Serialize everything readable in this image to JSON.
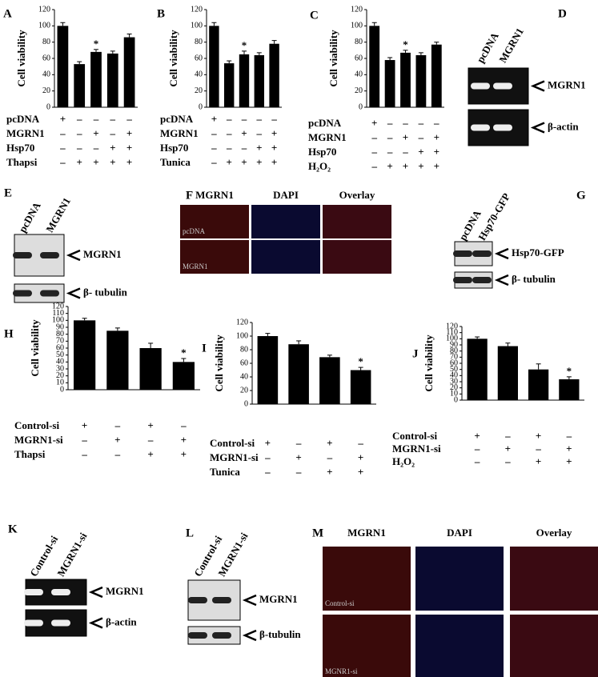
{
  "chart_data": [
    {
      "type": "bar",
      "panel": "A",
      "ylabel": "Cell viability",
      "ylim": [
        0,
        120
      ],
      "yticks": [
        0,
        20,
        40,
        60,
        80,
        100,
        120
      ],
      "color": "#000000",
      "categories": [
        null,
        null,
        null,
        null,
        null
      ],
      "values": [
        100,
        53,
        68,
        66,
        86
      ],
      "errors": [
        4,
        3,
        3,
        3,
        4
      ],
      "significance": [
        null,
        null,
        "*",
        null,
        null
      ],
      "conditions": [
        {
          "label": "pcDNA",
          "signs": [
            "+",
            "–",
            "–",
            "–",
            "–"
          ]
        },
        {
          "label": "MGRN1",
          "signs": [
            "–",
            "–",
            "+",
            "–",
            "+"
          ]
        },
        {
          "label": "Hsp70",
          "signs": [
            "–",
            "–",
            "–",
            "+",
            "+"
          ]
        },
        {
          "label": "Thapsi",
          "signs": [
            "–",
            "+",
            "+",
            "+",
            "+"
          ]
        }
      ]
    },
    {
      "type": "bar",
      "panel": "B",
      "ylabel": "Cell viability",
      "ylim": [
        0,
        120
      ],
      "yticks": [
        0,
        20,
        40,
        60,
        80,
        100,
        120
      ],
      "color": "#000000",
      "categories": [
        null,
        null,
        null,
        null,
        null
      ],
      "values": [
        100,
        54,
        65,
        64,
        78
      ],
      "errors": [
        4,
        3,
        4,
        3,
        4
      ],
      "significance": [
        null,
        null,
        "*",
        null,
        null
      ],
      "conditions": [
        {
          "label": "pcDNA",
          "signs": [
            "+",
            "–",
            "–",
            "–",
            "–"
          ]
        },
        {
          "label": "MGRN1",
          "signs": [
            "–",
            "–",
            "+",
            "–",
            "+"
          ]
        },
        {
          "label": "Hsp70",
          "signs": [
            "–",
            "–",
            "–",
            "+",
            "+"
          ]
        },
        {
          "label": "Tunica",
          "signs": [
            "–",
            "+",
            "+",
            "+",
            "+"
          ]
        }
      ]
    },
    {
      "type": "bar",
      "panel": "C",
      "ylabel": "Cell viability",
      "ylim": [
        0,
        120
      ],
      "yticks": [
        0,
        20,
        40,
        60,
        80,
        100,
        120
      ],
      "color": "#000000",
      "categories": [
        null,
        null,
        null,
        null,
        null
      ],
      "values": [
        100,
        58,
        67,
        64,
        77
      ],
      "errors": [
        4,
        3,
        3,
        3,
        3
      ],
      "significance": [
        null,
        null,
        "*",
        null,
        null
      ],
      "conditions": [
        {
          "label": "pcDNA",
          "signs": [
            "+",
            "–",
            "–",
            "–",
            "–"
          ]
        },
        {
          "label": "MGRN1",
          "signs": [
            "–",
            "–",
            "+",
            "–",
            "+"
          ]
        },
        {
          "label": "Hsp70",
          "signs": [
            "–",
            "–",
            "–",
            "+",
            "+"
          ]
        },
        {
          "label": "H₂O₂",
          "signs": [
            "–",
            "+",
            "+",
            "+",
            "+"
          ]
        }
      ]
    },
    {
      "type": "bar",
      "panel": "H",
      "ylabel": "Cell viability",
      "ylim": [
        0,
        120
      ],
      "yticks": [
        0,
        10,
        20,
        30,
        40,
        50,
        60,
        70,
        80,
        90,
        100,
        110,
        120
      ],
      "color": "#000000",
      "categories": [
        null,
        null,
        null,
        null
      ],
      "values": [
        100,
        85,
        60,
        40
      ],
      "errors": [
        3,
        4,
        7,
        5
      ],
      "significance": [
        null,
        null,
        null,
        "*"
      ],
      "conditions": [
        {
          "label": "Control-si",
          "signs": [
            "+",
            "–",
            "+",
            "–"
          ]
        },
        {
          "label": "MGRN1-si",
          "signs": [
            "–",
            "+",
            "–",
            "+"
          ]
        },
        {
          "label": "Thapsi",
          "signs": [
            "–",
            "–",
            "+",
            "+"
          ]
        }
      ]
    },
    {
      "type": "bar",
      "panel": "I",
      "ylabel": "Cell viability",
      "ylim": [
        0,
        120
      ],
      "yticks": [
        0,
        20,
        40,
        60,
        80,
        100,
        120
      ],
      "color": "#000000",
      "categories": [
        null,
        null,
        null,
        null
      ],
      "values": [
        100,
        88,
        69,
        50
      ],
      "errors": [
        4,
        5,
        3,
        4
      ],
      "significance": [
        null,
        null,
        null,
        "*"
      ],
      "conditions": [
        {
          "label": "Control-si",
          "signs": [
            "+",
            "–",
            "+",
            "–"
          ]
        },
        {
          "label": "MGRN1-si",
          "signs": [
            "–",
            "+",
            "–",
            "+"
          ]
        },
        {
          "label": "Tunica",
          "signs": [
            "–",
            "–",
            "+",
            "+"
          ]
        }
      ]
    },
    {
      "type": "bar",
      "panel": "J",
      "ylabel": "Cell viability",
      "ylim": [
        0,
        120
      ],
      "yticks": [
        0,
        10,
        20,
        30,
        40,
        50,
        60,
        70,
        80,
        90,
        100,
        110,
        120
      ],
      "color": "#000000",
      "categories": [
        null,
        null,
        null,
        null
      ],
      "values": [
        100,
        88,
        50,
        34
      ],
      "errors": [
        3,
        5,
        9,
        4
      ],
      "significance": [
        null,
        null,
        null,
        "*"
      ],
      "conditions": [
        {
          "label": "Control-si",
          "signs": [
            "+",
            "–",
            "+",
            "–"
          ]
        },
        {
          "label": "MGRN1-si",
          "signs": [
            "–",
            "+",
            "–",
            "+"
          ]
        },
        {
          "label": "H₂O₂",
          "signs": [
            "–",
            "–",
            "+",
            "+"
          ]
        }
      ]
    }
  ],
  "blots": [
    {
      "panel": "D",
      "kind": "gel",
      "lanes": [
        "pcDNA",
        "MGRN1"
      ],
      "bands": [
        "MGRN1",
        "β-actin"
      ]
    },
    {
      "panel": "E",
      "kind": "western",
      "lanes": [
        "pcDNA",
        "MGRN1"
      ],
      "bands": [
        "MGRN1",
        "β- tubulin"
      ]
    },
    {
      "panel": "G",
      "kind": "western",
      "lanes": [
        "pcDNA",
        "Hsp70-GFP"
      ],
      "bands": [
        "Hsp70-GFP",
        "β- tubulin"
      ]
    },
    {
      "panel": "K",
      "kind": "gel",
      "lanes": [
        "Control-si",
        "MGRN1-si"
      ],
      "bands": [
        "MGRN1",
        "β-actin"
      ]
    },
    {
      "panel": "L",
      "kind": "western",
      "lanes": [
        "Control-si",
        "MGRN1-si"
      ],
      "bands": [
        "MGRN1",
        "β-tubulin"
      ]
    }
  ],
  "images": [
    {
      "panel": "F",
      "columns": [
        "MGRN1",
        "DAPI",
        "Overlay"
      ],
      "rows": [
        "pcDNA",
        "MGRN1"
      ]
    },
    {
      "panel": "M",
      "columns": [
        "MGRN1",
        "DAPI",
        "Overlay"
      ],
      "rows": [
        "Control-si",
        "MGNR1-si"
      ]
    }
  ]
}
